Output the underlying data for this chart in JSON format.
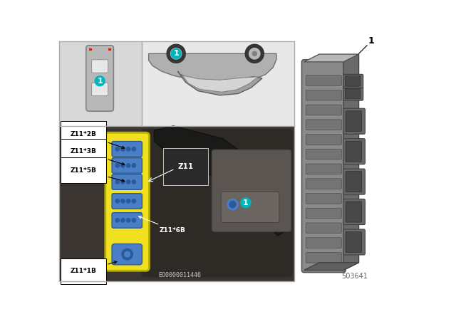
{
  "bg_color": "#ffffff",
  "panel_bg_gray": "#d8d8d8",
  "panel_bg_light": "#e8e8e8",
  "engine_bg": "#3a3530",
  "teal_color": "#00b5bd",
  "yellow_color": "#f0e020",
  "blue_conn_color": "#4a7ec7",
  "blue_conn_dark": "#2a5a9a",
  "sep_color": "#aaaaaa",
  "part_number": "503641",
  "eo_number": "EO0000011446",
  "labels": [
    "Z11*2B",
    "Z11*3B",
    "Z11*5B",
    "Z11*6B",
    "Z11*1B"
  ],
  "z11_label": "Z11",
  "callout": "1",
  "comp_gray": "#8a8a8a",
  "comp_dark": "#5a5a5a",
  "comp_light": "#b8b8b8"
}
